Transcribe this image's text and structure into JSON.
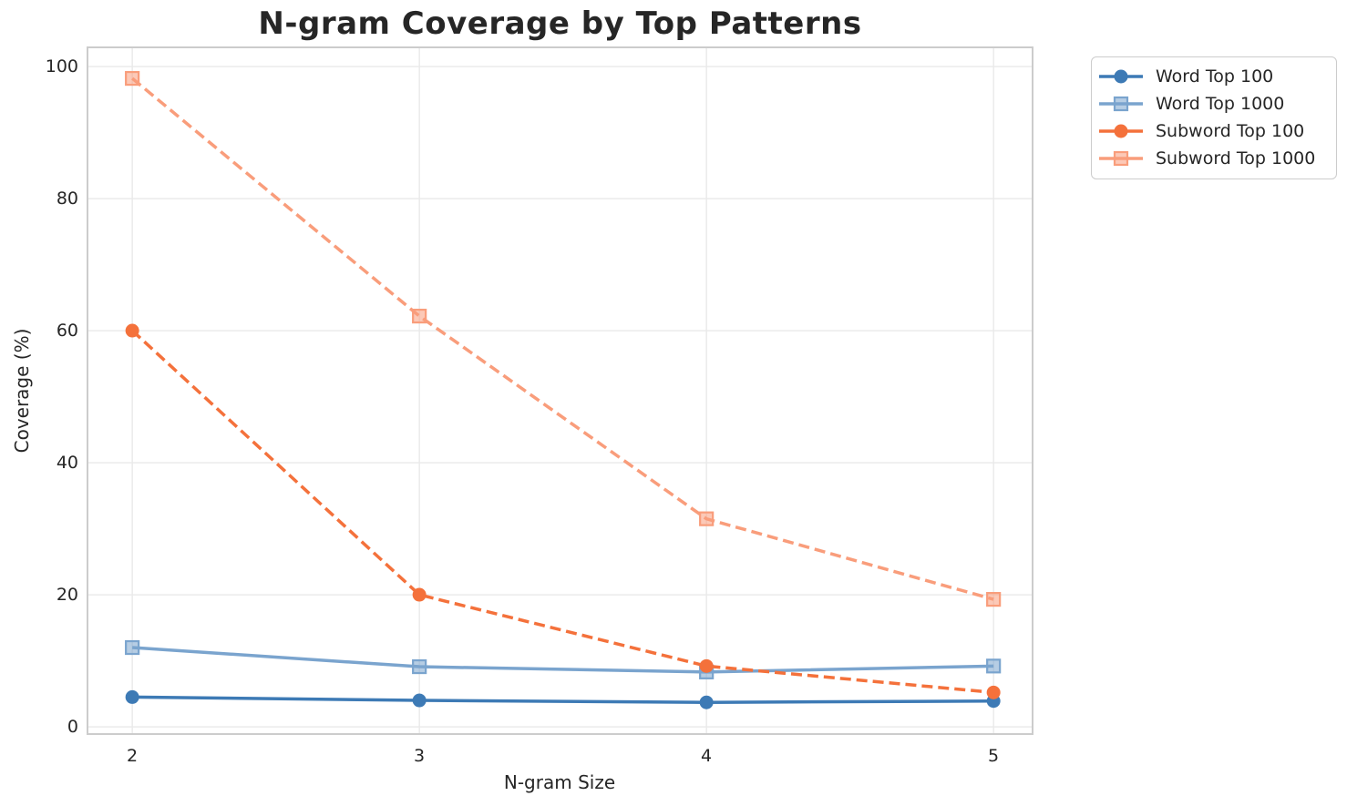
{
  "figure": {
    "background_color": "#ffffff",
    "text_color": "#262626",
    "grid_color": "#e9e9e9",
    "spine_color": "#cccccc"
  },
  "chart_data": {
    "type": "line",
    "title": "N-gram Coverage by Top Patterns",
    "xlabel": "N-gram Size",
    "ylabel": "Coverage (%)",
    "x": [
      2,
      3,
      4,
      5
    ],
    "xticklabels": [
      "2",
      "3",
      "4",
      "5"
    ],
    "yticks": [
      0,
      20,
      40,
      60,
      80,
      100
    ],
    "yticklabels": [
      "0",
      "20",
      "40",
      "60",
      "80",
      "100"
    ],
    "xlim": [
      1.844,
      5.136
    ],
    "ylim": [
      -1.1,
      102.9
    ],
    "grid": true,
    "legend_position": "upper right outside axes",
    "series": [
      {
        "name": "Word Top 100",
        "values": [
          4.5,
          4.0,
          3.7,
          3.9
        ],
        "color": "#3d7ab5",
        "marker": "circle",
        "linestyle": "solid"
      },
      {
        "name": "Word Top 1000",
        "values": [
          12.0,
          9.1,
          8.3,
          9.2
        ],
        "color": "#7aa4ce",
        "marker": "square",
        "linestyle": "solid"
      },
      {
        "name": "Subword Top 100",
        "values": [
          60.0,
          20.0,
          9.2,
          5.2
        ],
        "color": "#f4713b",
        "marker": "circle",
        "linestyle": "dashed"
      },
      {
        "name": "Subword Top 1000",
        "values": [
          98.2,
          62.2,
          31.5,
          19.3
        ],
        "color": "#f99d7b",
        "marker": "square",
        "linestyle": "dashed"
      }
    ]
  }
}
